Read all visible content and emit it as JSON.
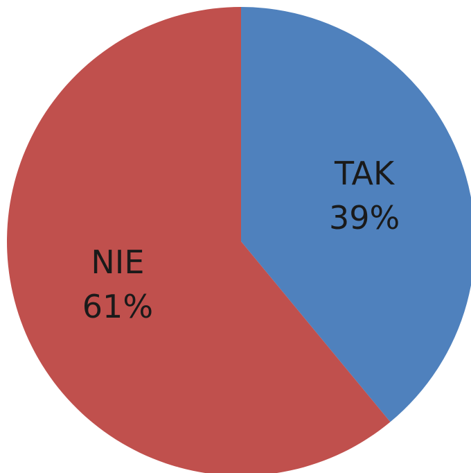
{
  "chart_data": {
    "type": "pie",
    "title": "",
    "slices": [
      {
        "label": "TAK",
        "value": 39,
        "display": "39%",
        "color": "#4f81bd"
      },
      {
        "label": "NIE",
        "value": 61,
        "display": "61%",
        "color": "#c0504d"
      }
    ],
    "start_angle_deg": 0,
    "direction": "clockwise",
    "legend": "none",
    "data_labels": "inside"
  }
}
